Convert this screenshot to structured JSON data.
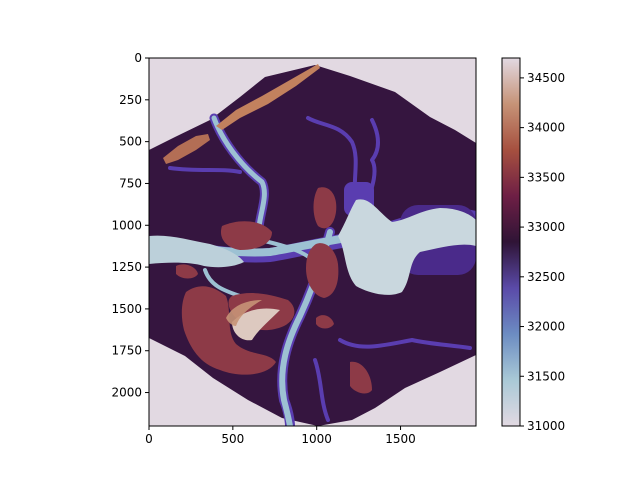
{
  "chart_data": {
    "type": "heatmap",
    "title": "",
    "xlabel": "",
    "ylabel": "",
    "xlim": [
      0,
      1950
    ],
    "ylim": [
      2200,
      0
    ],
    "x_ticks": [
      "0",
      "500",
      "1000",
      "1500"
    ],
    "x_tick_values": [
      0,
      500,
      1000,
      1500
    ],
    "y_ticks": [
      "0",
      "250",
      "500",
      "750",
      "1000",
      "1250",
      "1500",
      "1750",
      "2000"
    ],
    "y_tick_values": [
      0,
      250,
      500,
      750,
      1000,
      1250,
      1500,
      1750,
      2000
    ],
    "colorbar": {
      "range": [
        31000,
        34700
      ],
      "ticks": [
        "31000",
        "31500",
        "32000",
        "32500",
        "33000",
        "33500",
        "34000",
        "34500"
      ],
      "tick_values": [
        31000,
        31500,
        32000,
        32500,
        33000,
        33500,
        34000,
        34500
      ],
      "colormap": "twilight",
      "colormap_stops": [
        "#e2d9e2",
        "#a9c9d6",
        "#6c8cc2",
        "#5a4aa8",
        "#2f1436",
        "#6e1f45",
        "#a6503f",
        "#c69377",
        "#e2d9e2"
      ]
    },
    "background_value": 31000,
    "regions": [
      {
        "name": "main-land",
        "value": 32800,
        "color": "#35153f"
      },
      {
        "name": "river-channels",
        "value": 31500,
        "color": "#9dc1d3"
      },
      {
        "name": "wide-water",
        "value": 31100,
        "color": "#c9d7de"
      },
      {
        "name": "channel-margins",
        "value": 32300,
        "color": "#5a3db0"
      },
      {
        "name": "ridge-top-left",
        "value": 34000,
        "color": "#c2815e"
      },
      {
        "name": "highland-south-west",
        "value": 33600,
        "color": "#8d3a47"
      },
      {
        "name": "peak-south-west",
        "value": 34600,
        "color": "#ddc9c0"
      }
    ],
    "legend": "colorbar-right",
    "grid": false
  }
}
